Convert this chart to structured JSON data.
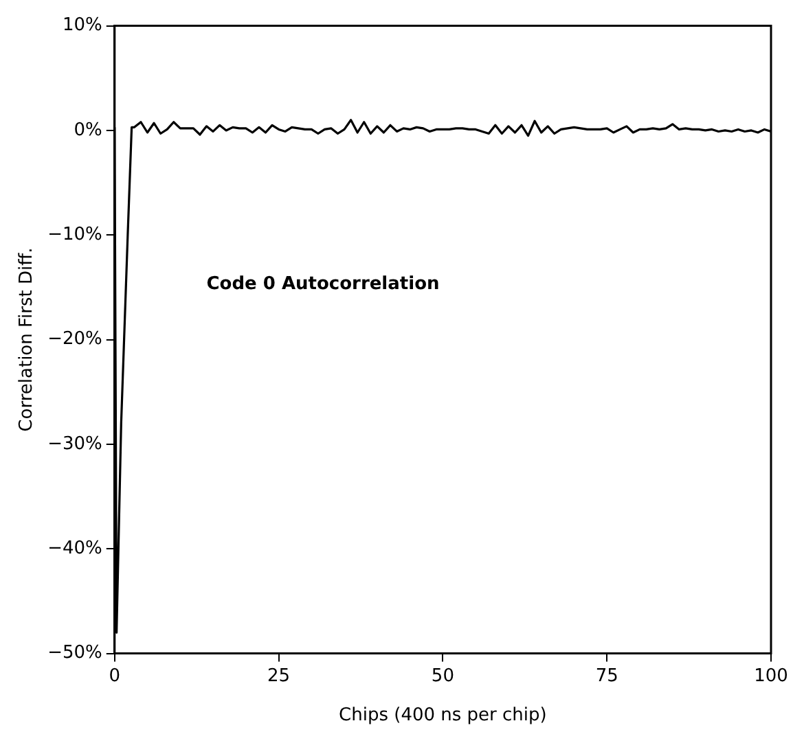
{
  "chart_data": {
    "type": "line",
    "xlabel": "Chips (400 ns per chip)",
    "ylabel": "Correlation First Diff.",
    "annotations": [
      "Code 0 Autocorrelation"
    ],
    "x": [
      0,
      0.3,
      1,
      2,
      2.6,
      3,
      4,
      5,
      6,
      7,
      8,
      9,
      10,
      11,
      12,
      13,
      14,
      15,
      16,
      17,
      18,
      19,
      20,
      21,
      22,
      23,
      24,
      25,
      26,
      27,
      28,
      29,
      30,
      31,
      32,
      33,
      34,
      35,
      36,
      37,
      38,
      39,
      40,
      41,
      42,
      43,
      44,
      45,
      46,
      47,
      48,
      49,
      50,
      51,
      52,
      53,
      54,
      55,
      56,
      57,
      58,
      59,
      60,
      61,
      62,
      63,
      64,
      65,
      66,
      67,
      68,
      69,
      70,
      71,
      72,
      73,
      74,
      75,
      76,
      77,
      78,
      79,
      80,
      81,
      82,
      83,
      84,
      85,
      86,
      87,
      88,
      89,
      90,
      91,
      92,
      93,
      94,
      95,
      96,
      97,
      98,
      99,
      100
    ],
    "series": [
      {
        "color": "#000000",
        "values": [
          0.3,
          -48,
          -28,
          -10,
          0.3,
          0.3,
          0.8,
          -0.2,
          0.7,
          -0.3,
          0.1,
          0.8,
          0.2,
          0.2,
          0.2,
          -0.4,
          0.4,
          -0.1,
          0.5,
          0,
          0.3,
          0.2,
          0.2,
          -0.2,
          0.3,
          -0.2,
          0.5,
          0.1,
          -0.1,
          0.3,
          0.2,
          0.1,
          0.1,
          -0.3,
          0.1,
          0.2,
          -0.3,
          0.1,
          1,
          -0.2,
          0.8,
          -0.3,
          0.4,
          -0.2,
          0.5,
          -0.1,
          0.2,
          0.1,
          0.3,
          0.2,
          -0.1,
          0.1,
          0.1,
          0.1,
          0.2,
          0.2,
          0.1,
          0.1,
          -0.1,
          -0.3,
          0.5,
          -0.3,
          0.4,
          -0.2,
          0.5,
          -0.5,
          0.9,
          -0.2,
          0.4,
          -0.3,
          0.1,
          0.2,
          0.3,
          0.2,
          0.1,
          0.1,
          0.1,
          0.2,
          -0.2,
          0.1,
          0.4,
          -0.2,
          0.1,
          0.1,
          0.2,
          0.1,
          0.2,
          0.6,
          0.1,
          0.2,
          0.1,
          0.1,
          0,
          0.1,
          -0.1,
          0,
          -0.1,
          0.1,
          -0.1,
          0,
          -0.2,
          0.1,
          -0.1
        ]
      }
    ],
    "xlim": [
      0,
      100
    ],
    "xticks": [
      0,
      25,
      50,
      75,
      100
    ],
    "ylim": [
      -50,
      10
    ],
    "yticks": [
      {
        "value": -50,
        "label": "−50%"
      },
      {
        "value": -40,
        "label": "−40%"
      },
      {
        "value": -30,
        "label": "−30%"
      },
      {
        "value": -20,
        "label": "−20%"
      },
      {
        "value": -10,
        "label": "−10%"
      },
      {
        "value": 0,
        "label": "0%"
      },
      {
        "value": 10,
        "label": "10%"
      }
    ],
    "grid": false,
    "legend": false,
    "marker": "none",
    "line_style": "solid"
  }
}
